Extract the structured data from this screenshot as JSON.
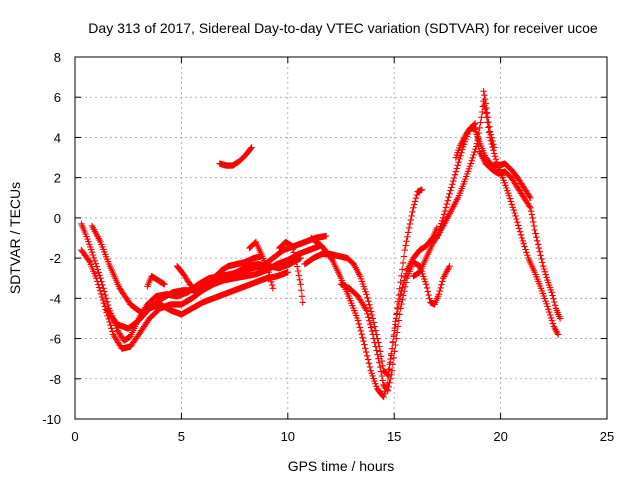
{
  "chart_data": {
    "type": "scatter",
    "title": "Day 313 of 2017, Sidereal Day-to-day VTEC variation (SDTVAR) for receiver ucoe",
    "xlabel": "GPS time / hours",
    "ylabel": "SDTVAR / TECUs",
    "xlim": [
      0,
      25
    ],
    "ylim": [
      -10,
      8
    ],
    "xticks": [
      0,
      5,
      10,
      15,
      20,
      25
    ],
    "yticks": [
      -10,
      -8,
      -6,
      -4,
      -2,
      0,
      2,
      4,
      6,
      8
    ],
    "xtick_labels": [
      "0",
      "5",
      "10",
      "15",
      "20",
      "25"
    ],
    "ytick_labels": [
      "-10",
      "-8",
      "-6",
      "-4",
      "-2",
      "0",
      "2",
      "4",
      "6",
      "8"
    ],
    "grid": true,
    "marker": "+",
    "series_color": "#ff0000",
    "series": [
      {
        "name": "s1",
        "points": [
          [
            0.3,
            -0.3
          ],
          [
            0.5,
            -0.8
          ],
          [
            0.8,
            -1.7
          ],
          [
            1.2,
            -3.0
          ],
          [
            1.6,
            -4.5
          ],
          [
            2.0,
            -5.6
          ],
          [
            2.3,
            -6.1
          ],
          [
            2.6,
            -5.9
          ],
          [
            3.0,
            -5.0
          ],
          [
            3.4,
            -4.3
          ],
          [
            3.8,
            -3.9
          ],
          [
            4.3,
            -3.8
          ],
          [
            4.8,
            -3.9
          ],
          [
            5.3,
            -3.7
          ],
          [
            5.8,
            -3.3
          ],
          [
            6.3,
            -3.0
          ],
          [
            6.8,
            -2.9
          ],
          [
            7.3,
            -2.8
          ],
          [
            7.8,
            -2.7
          ],
          [
            8.3,
            -2.5
          ],
          [
            8.8,
            -2.4
          ],
          [
            9.3,
            -2.0
          ],
          [
            9.8,
            -1.6
          ],
          [
            10.3,
            -1.4
          ],
          [
            10.8,
            -1.2
          ],
          [
            11.3,
            -1.0
          ],
          [
            11.8,
            -0.9
          ]
        ]
      },
      {
        "name": "s2",
        "points": [
          [
            0.3,
            -1.6
          ],
          [
            0.7,
            -2.2
          ],
          [
            1.0,
            -3.0
          ],
          [
            1.4,
            -4.4
          ],
          [
            1.8,
            -5.8
          ],
          [
            2.2,
            -6.5
          ],
          [
            2.6,
            -6.4
          ],
          [
            3.0,
            -5.8
          ],
          [
            3.5,
            -5.0
          ],
          [
            4.0,
            -4.5
          ],
          [
            4.5,
            -4.3
          ],
          [
            5.0,
            -4.3
          ],
          [
            5.5,
            -4.0
          ],
          [
            6.0,
            -3.6
          ],
          [
            6.5,
            -3.3
          ],
          [
            7.0,
            -3.1
          ],
          [
            7.5,
            -3.0
          ],
          [
            8.0,
            -2.9
          ],
          [
            8.5,
            -2.8
          ],
          [
            9.0,
            -2.6
          ],
          [
            9.5,
            -2.3
          ],
          [
            10.0,
            -2.1
          ],
          [
            10.5,
            -1.8
          ],
          [
            11.0,
            -1.6
          ],
          [
            11.5,
            -1.4
          ]
        ]
      },
      {
        "name": "s3",
        "points": [
          [
            0.8,
            -0.4
          ],
          [
            1.2,
            -1.2
          ],
          [
            1.6,
            -2.3
          ],
          [
            2.1,
            -3.5
          ],
          [
            2.6,
            -4.3
          ],
          [
            3.1,
            -4.7
          ],
          [
            3.6,
            -4.4
          ],
          [
            4.1,
            -4.0
          ],
          [
            4.6,
            -3.7
          ],
          [
            5.1,
            -3.6
          ],
          [
            5.6,
            -3.6
          ],
          [
            6.1,
            -3.3
          ],
          [
            6.6,
            -3.1
          ],
          [
            7.1,
            -2.9
          ],
          [
            7.6,
            -2.7
          ],
          [
            8.1,
            -2.4
          ],
          [
            8.6,
            -2.3
          ],
          [
            9.1,
            -2.4
          ],
          [
            9.6,
            -2.5
          ],
          [
            10.1,
            -2.3
          ],
          [
            10.6,
            -2.0
          ]
        ]
      },
      {
        "name": "s4",
        "points": [
          [
            1.5,
            -4.6
          ],
          [
            2.0,
            -5.3
          ],
          [
            2.5,
            -5.5
          ],
          [
            3.0,
            -5.1
          ],
          [
            3.5,
            -4.5
          ],
          [
            4.0,
            -4.3
          ],
          [
            4.5,
            -4.6
          ],
          [
            5.0,
            -4.8
          ],
          [
            5.5,
            -4.5
          ],
          [
            6.0,
            -4.2
          ],
          [
            6.5,
            -4.0
          ],
          [
            7.0,
            -3.8
          ],
          [
            7.5,
            -3.6
          ],
          [
            8.0,
            -3.4
          ],
          [
            8.5,
            -3.2
          ],
          [
            9.0,
            -3.0
          ],
          [
            9.5,
            -2.9
          ],
          [
            10.0,
            -2.7
          ]
        ]
      },
      {
        "name": "s5",
        "points": [
          [
            3.4,
            -3.4
          ],
          [
            3.6,
            -2.9
          ],
          [
            3.9,
            -3.1
          ],
          [
            4.2,
            -3.3
          ]
        ]
      },
      {
        "name": "s6",
        "points": [
          [
            4.8,
            -2.4
          ],
          [
            5.1,
            -2.8
          ],
          [
            5.4,
            -3.3
          ],
          [
            5.7,
            -3.6
          ],
          [
            6.0,
            -3.5
          ],
          [
            6.3,
            -3.2
          ],
          [
            6.6,
            -2.9
          ],
          [
            6.9,
            -2.6
          ],
          [
            7.2,
            -2.4
          ],
          [
            7.6,
            -2.3
          ],
          [
            8.0,
            -2.2
          ],
          [
            8.4,
            -2.0
          ],
          [
            8.8,
            -1.9
          ]
        ]
      },
      {
        "name": "s7",
        "points": [
          [
            6.8,
            2.7
          ],
          [
            7.1,
            2.6
          ],
          [
            7.4,
            2.6
          ],
          [
            7.7,
            2.8
          ],
          [
            8.0,
            3.1
          ],
          [
            8.3,
            3.5
          ]
        ]
      },
      {
        "name": "s8",
        "points": [
          [
            8.2,
            -1.5
          ],
          [
            8.5,
            -1.2
          ],
          [
            8.8,
            -1.9
          ],
          [
            9.1,
            -2.7
          ],
          [
            9.3,
            -3.5
          ]
        ]
      },
      {
        "name": "s9",
        "points": [
          [
            9.6,
            -1.5
          ],
          [
            9.9,
            -1.2
          ],
          [
            10.2,
            -1.4
          ],
          [
            10.4,
            -2.2
          ],
          [
            10.6,
            -3.3
          ],
          [
            10.7,
            -4.2
          ]
        ]
      },
      {
        "name": "s10",
        "points": [
          [
            10.8,
            -2.3
          ],
          [
            11.2,
            -2.0
          ],
          [
            11.6,
            -1.8
          ],
          [
            12.0,
            -1.8
          ],
          [
            12.4,
            -1.9
          ],
          [
            12.8,
            -2.0
          ],
          [
            13.1,
            -2.3
          ],
          [
            13.4,
            -2.9
          ],
          [
            13.7,
            -3.8
          ],
          [
            14.0,
            -5.0
          ],
          [
            14.3,
            -6.4
          ],
          [
            14.5,
            -7.6
          ],
          [
            14.7,
            -7.8
          ],
          [
            14.9,
            -6.5
          ],
          [
            15.1,
            -5.0
          ],
          [
            15.3,
            -3.8
          ],
          [
            15.6,
            -2.6
          ],
          [
            15.9,
            -2.0
          ],
          [
            16.2,
            -1.6
          ],
          [
            16.5,
            -1.4
          ],
          [
            16.8,
            -1.0
          ],
          [
            17.0,
            -0.5
          ]
        ]
      },
      {
        "name": "s11",
        "points": [
          [
            11.1,
            -1.0
          ],
          [
            11.6,
            -1.4
          ],
          [
            12.1,
            -2.1
          ],
          [
            12.5,
            -3.0
          ],
          [
            12.9,
            -4.0
          ],
          [
            13.3,
            -5.1
          ],
          [
            13.6,
            -6.3
          ],
          [
            13.9,
            -7.6
          ],
          [
            14.2,
            -8.5
          ],
          [
            14.5,
            -8.9
          ],
          [
            14.7,
            -8.2
          ],
          [
            14.9,
            -6.5
          ],
          [
            15.1,
            -4.8
          ],
          [
            15.3,
            -3.2
          ],
          [
            15.5,
            -1.6
          ],
          [
            15.7,
            -0.5
          ],
          [
            15.9,
            0.5
          ],
          [
            16.1,
            1.3
          ],
          [
            16.3,
            1.4
          ]
        ]
      },
      {
        "name": "s12",
        "points": [
          [
            12.5,
            -3.3
          ],
          [
            12.9,
            -3.5
          ],
          [
            13.3,
            -3.9
          ],
          [
            13.7,
            -4.6
          ],
          [
            14.0,
            -5.8
          ],
          [
            14.3,
            -7.2
          ],
          [
            14.5,
            -8.3
          ],
          [
            14.7,
            -8.6
          ],
          [
            14.9,
            -7.6
          ],
          [
            15.1,
            -6.0
          ],
          [
            15.3,
            -4.5
          ],
          [
            15.6,
            -3.0
          ],
          [
            15.9,
            -2.2
          ],
          [
            16.2,
            -2.4
          ],
          [
            16.5,
            -3.3
          ],
          [
            16.7,
            -4.2
          ],
          [
            16.9,
            -4.3
          ],
          [
            17.1,
            -3.8
          ],
          [
            17.3,
            -3.0
          ],
          [
            17.6,
            -2.4
          ]
        ]
      },
      {
        "name": "s13",
        "points": [
          [
            15.9,
            -2.9
          ],
          [
            16.2,
            -2.7
          ],
          [
            16.5,
            -2.0
          ],
          [
            16.8,
            -1.3
          ],
          [
            17.1,
            -0.8
          ],
          [
            17.4,
            -0.2
          ],
          [
            17.7,
            0.4
          ],
          [
            18.0,
            1.0
          ],
          [
            18.3,
            1.8
          ],
          [
            18.6,
            2.7
          ],
          [
            18.9,
            3.7
          ],
          [
            19.1,
            5.0
          ],
          [
            19.2,
            5.8
          ],
          [
            19.35,
            5.0
          ],
          [
            19.5,
            4.0
          ],
          [
            19.7,
            3.2
          ],
          [
            19.9,
            2.5
          ],
          [
            20.1,
            2.0
          ],
          [
            20.4,
            1.1
          ],
          [
            20.7,
            0.1
          ],
          [
            21.0,
            -1.0
          ],
          [
            21.3,
            -2.0
          ],
          [
            21.6,
            -2.7
          ],
          [
            21.9,
            -3.5
          ],
          [
            22.2,
            -4.4
          ],
          [
            22.5,
            -5.4
          ],
          [
            22.7,
            -5.8
          ]
        ]
      },
      {
        "name": "s14",
        "points": [
          [
            17.0,
            -1.0
          ],
          [
            17.3,
            0.0
          ],
          [
            17.6,
            1.2
          ],
          [
            17.9,
            2.3
          ],
          [
            18.2,
            3.4
          ],
          [
            18.5,
            4.3
          ],
          [
            18.8,
            4.7
          ],
          [
            19.0,
            3.3
          ],
          [
            19.3,
            2.7
          ],
          [
            19.6,
            2.4
          ],
          [
            19.9,
            2.2
          ],
          [
            20.2,
            2.3
          ],
          [
            20.5,
            2.0
          ],
          [
            20.8,
            1.5
          ],
          [
            21.1,
            1.0
          ],
          [
            21.4,
            0.5
          ],
          [
            21.5,
            0.0
          ],
          [
            21.6,
            -0.6
          ],
          [
            21.8,
            -1.5
          ],
          [
            22.0,
            -2.4
          ],
          [
            22.2,
            -3.1
          ],
          [
            22.4,
            -3.7
          ],
          [
            22.6,
            -4.5
          ],
          [
            22.8,
            -5.0
          ]
        ]
      },
      {
        "name": "s15",
        "points": [
          [
            17.9,
            3.0
          ],
          [
            18.1,
            3.6
          ],
          [
            18.4,
            4.2
          ],
          [
            18.6,
            4.5
          ],
          [
            18.8,
            4.4
          ],
          [
            19.0,
            3.8
          ],
          [
            19.3,
            3.0
          ],
          [
            19.6,
            2.6
          ],
          [
            19.9,
            2.6
          ],
          [
            20.2,
            2.7
          ],
          [
            20.5,
            2.4
          ],
          [
            20.8,
            2.0
          ],
          [
            21.1,
            1.5
          ],
          [
            21.4,
            1.0
          ]
        ]
      },
      {
        "name": "s16",
        "points": [
          [
            19.2,
            6.3
          ],
          [
            19.3,
            5.7
          ],
          [
            19.4,
            5.0
          ],
          [
            19.5,
            4.3
          ],
          [
            19.7,
            3.5
          ]
        ]
      }
    ]
  }
}
